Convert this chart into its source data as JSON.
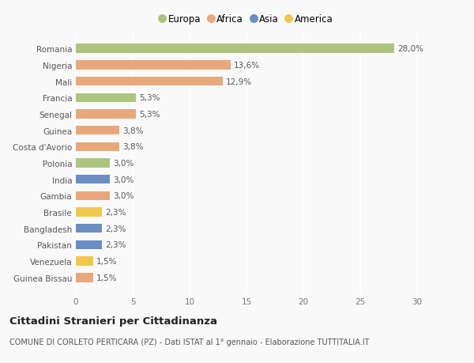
{
  "countries": [
    "Romania",
    "Nigeria",
    "Mali",
    "Francia",
    "Senegal",
    "Guinea",
    "Costa d'Avorio",
    "Polonia",
    "India",
    "Gambia",
    "Brasile",
    "Bangladesh",
    "Pakistan",
    "Venezuela",
    "Guinea Bissau"
  ],
  "values": [
    28.0,
    13.6,
    12.9,
    5.3,
    5.3,
    3.8,
    3.8,
    3.0,
    3.0,
    3.0,
    2.3,
    2.3,
    2.3,
    1.5,
    1.5
  ],
  "labels": [
    "28,0%",
    "13,6%",
    "12,9%",
    "5,3%",
    "5,3%",
    "3,8%",
    "3,8%",
    "3,0%",
    "3,0%",
    "3,0%",
    "2,3%",
    "2,3%",
    "2,3%",
    "1,5%",
    "1,5%"
  ],
  "continents": [
    "Europa",
    "Africa",
    "Africa",
    "Europa",
    "Africa",
    "Africa",
    "Africa",
    "Europa",
    "Asia",
    "Africa",
    "America",
    "Asia",
    "Asia",
    "America",
    "Africa"
  ],
  "continent_colors": {
    "Europa": "#adc47e",
    "Africa": "#e8a87c",
    "Asia": "#6b8dc4",
    "America": "#f0c84e"
  },
  "legend_order": [
    "Europa",
    "Africa",
    "Asia",
    "America"
  ],
  "xlim": [
    0,
    30
  ],
  "xticks": [
    0,
    5,
    10,
    15,
    20,
    25,
    30
  ],
  "title": "Cittadini Stranieri per Cittadinanza",
  "subtitle": "COMUNE DI CORLETO PERTICARA (PZ) - Dati ISTAT al 1° gennaio - Elaborazione TUTTITALIA.IT",
  "background_color": "#f9f9f9",
  "bar_height": 0.55,
  "grid_color": "#ffffff",
  "label_fontsize": 7.5,
  "tick_fontsize": 7.5,
  "title_fontsize": 9.5,
  "subtitle_fontsize": 7
}
